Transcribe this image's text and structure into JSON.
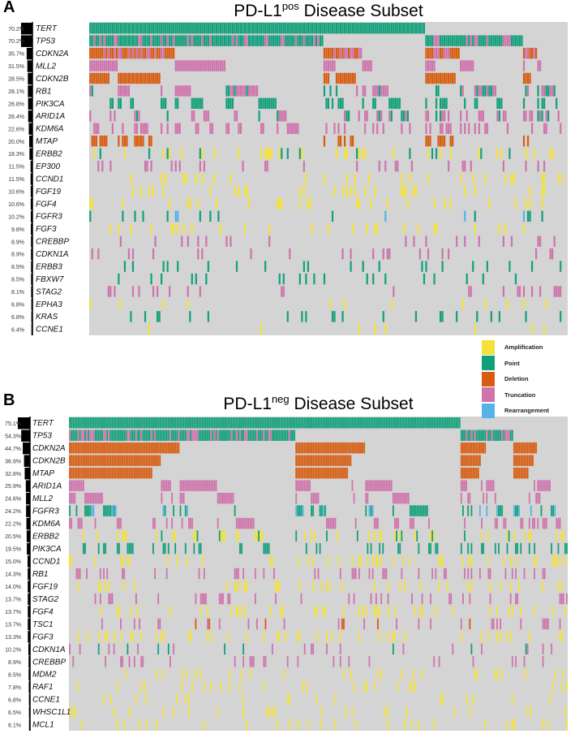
{
  "colors": {
    "Amplification": "#f2e23a",
    "Point": "#12a07a",
    "Deletion": "#d85c10",
    "Truncation": "#cf74ac",
    "Rearrangement": "#55b3e8",
    "none": "#d4d4d4"
  },
  "legend": [
    "Amplification",
    "Point",
    "Deletion",
    "Truncation",
    "Rearrangement"
  ],
  "chart_data": [
    {
      "type": "heatmap",
      "panel": "A",
      "title_main": "PD-L1",
      "title_sup": "pos",
      "title_rest": " Disease Subset",
      "samples": 235,
      "genes": [
        {
          "name": "TERT",
          "pct": "70.2%",
          "v": 70.2,
          "type": "Point"
        },
        {
          "name": "TP53",
          "pct": "70.2%",
          "v": 70.2,
          "type": "Point",
          "mix": "Truncation"
        },
        {
          "name": "CDKN2A",
          "pct": "35.7%",
          "v": 35.7,
          "type": "Deletion",
          "mix": "Truncation"
        },
        {
          "name": "MLL2",
          "pct": "31.5%",
          "v": 31.5,
          "type": "Truncation"
        },
        {
          "name": "CDKN2B",
          "pct": "28.5%",
          "v": 28.5,
          "type": "Deletion"
        },
        {
          "name": "RB1",
          "pct": "28.1%",
          "v": 28.1,
          "type": "Truncation",
          "mix": "Point"
        },
        {
          "name": "PIK3CA",
          "pct": "26.8%",
          "v": 26.8,
          "type": "Point"
        },
        {
          "name": "ARID1A",
          "pct": "26.4%",
          "v": 26.4,
          "type": "Truncation",
          "mix": "Point"
        },
        {
          "name": "KDM6A",
          "pct": "22.6%",
          "v": 22.6,
          "type": "Truncation"
        },
        {
          "name": "MTAP",
          "pct": "20.0%",
          "v": 20.0,
          "type": "Deletion"
        },
        {
          "name": "ERBB2",
          "pct": "18.3%",
          "v": 18.3,
          "type": "Amplification",
          "mix": "Point"
        },
        {
          "name": "EP300",
          "pct": "11.5%",
          "v": 11.5,
          "type": "Truncation"
        },
        {
          "name": "CCND1",
          "pct": "11.5%",
          "v": 11.5,
          "type": "Amplification"
        },
        {
          "name": "FGF19",
          "pct": "10.6%",
          "v": 10.6,
          "type": "Amplification"
        },
        {
          "name": "FGF4",
          "pct": "10.6%",
          "v": 10.6,
          "type": "Amplification"
        },
        {
          "name": "FGFR3",
          "pct": "10.2%",
          "v": 10.2,
          "type": "Point",
          "mix": "Rearrangement"
        },
        {
          "name": "FGF3",
          "pct": "9.8%",
          "v": 9.8,
          "type": "Amplification"
        },
        {
          "name": "CREBBP",
          "pct": "8.9%",
          "v": 8.9,
          "type": "Truncation"
        },
        {
          "name": "CDKN1A",
          "pct": "8.9%",
          "v": 8.9,
          "type": "Truncation"
        },
        {
          "name": "ERBB3",
          "pct": "8.5%",
          "v": 8.5,
          "type": "Point"
        },
        {
          "name": "FBXW7",
          "pct": "8.5%",
          "v": 8.5,
          "type": "Point"
        },
        {
          "name": "STAG2",
          "pct": "8.1%",
          "v": 8.1,
          "type": "Truncation"
        },
        {
          "name": "EPHA3",
          "pct": "6.8%",
          "v": 6.8,
          "type": "Amplification"
        },
        {
          "name": "KRAS",
          "pct": "6.8%",
          "v": 6.8,
          "type": "Point"
        },
        {
          "name": "CCNE1",
          "pct": "6.4%",
          "v": 6.4,
          "type": "Amplification"
        }
      ]
    },
    {
      "type": "heatmap",
      "panel": "B",
      "title_main": "PD-L1",
      "title_sup": "neg",
      "title_rest": " Disease Subset",
      "samples": 293,
      "genes": [
        {
          "name": "TERT",
          "pct": "75.1%",
          "v": 75.1,
          "type": "Point"
        },
        {
          "name": "TP53",
          "pct": "54.3%",
          "v": 54.3,
          "type": "Point",
          "mix": "Truncation"
        },
        {
          "name": "CDKN2A",
          "pct": "44.7%",
          "v": 44.7,
          "type": "Deletion"
        },
        {
          "name": "CDKN2B",
          "pct": "36.9%",
          "v": 36.9,
          "type": "Deletion"
        },
        {
          "name": "MTAP",
          "pct": "32.8%",
          "v": 32.8,
          "type": "Deletion"
        },
        {
          "name": "ARID1A",
          "pct": "25.9%",
          "v": 25.9,
          "type": "Truncation"
        },
        {
          "name": "MLL2",
          "pct": "24.6%",
          "v": 24.6,
          "type": "Truncation"
        },
        {
          "name": "FGFR3",
          "pct": "24.2%",
          "v": 24.2,
          "type": "Point",
          "mix": "Rearrangement"
        },
        {
          "name": "KDM6A",
          "pct": "22.2%",
          "v": 22.2,
          "type": "Truncation"
        },
        {
          "name": "ERBB2",
          "pct": "20.5%",
          "v": 20.5,
          "type": "Amplification",
          "mix": "Point"
        },
        {
          "name": "PIK3CA",
          "pct": "19.5%",
          "v": 19.5,
          "type": "Point"
        },
        {
          "name": "CCND1",
          "pct": "15.0%",
          "v": 15.0,
          "type": "Amplification"
        },
        {
          "name": "RB1",
          "pct": "14.3%",
          "v": 14.3,
          "type": "Truncation"
        },
        {
          "name": "FGF19",
          "pct": "14.0%",
          "v": 14.0,
          "type": "Amplification"
        },
        {
          "name": "STAG2",
          "pct": "13.7%",
          "v": 13.7,
          "type": "Truncation"
        },
        {
          "name": "FGF4",
          "pct": "13.7%",
          "v": 13.7,
          "type": "Amplification"
        },
        {
          "name": "TSC1",
          "pct": "13.7%",
          "v": 13.7,
          "type": "Truncation",
          "mix": "Deletion"
        },
        {
          "name": "FGF3",
          "pct": "13.3%",
          "v": 13.3,
          "type": "Amplification"
        },
        {
          "name": "CDKN1A",
          "pct": "10.2%",
          "v": 10.2,
          "type": "Truncation",
          "mix": "Point"
        },
        {
          "name": "CREBBP",
          "pct": "8.9%",
          "v": 8.9,
          "type": "Truncation"
        },
        {
          "name": "MDM2",
          "pct": "8.5%",
          "v": 8.5,
          "type": "Amplification"
        },
        {
          "name": "RAF1",
          "pct": "7.8%",
          "v": 7.8,
          "type": "Amplification"
        },
        {
          "name": "CCNE1",
          "pct": "6.8%",
          "v": 6.8,
          "type": "Amplification"
        },
        {
          "name": "WHSC1L1",
          "pct": "6.5%",
          "v": 6.5,
          "type": "Amplification"
        },
        {
          "name": "MCL1",
          "pct": "6.1%",
          "v": 6.1,
          "type": "Amplification"
        }
      ]
    }
  ]
}
